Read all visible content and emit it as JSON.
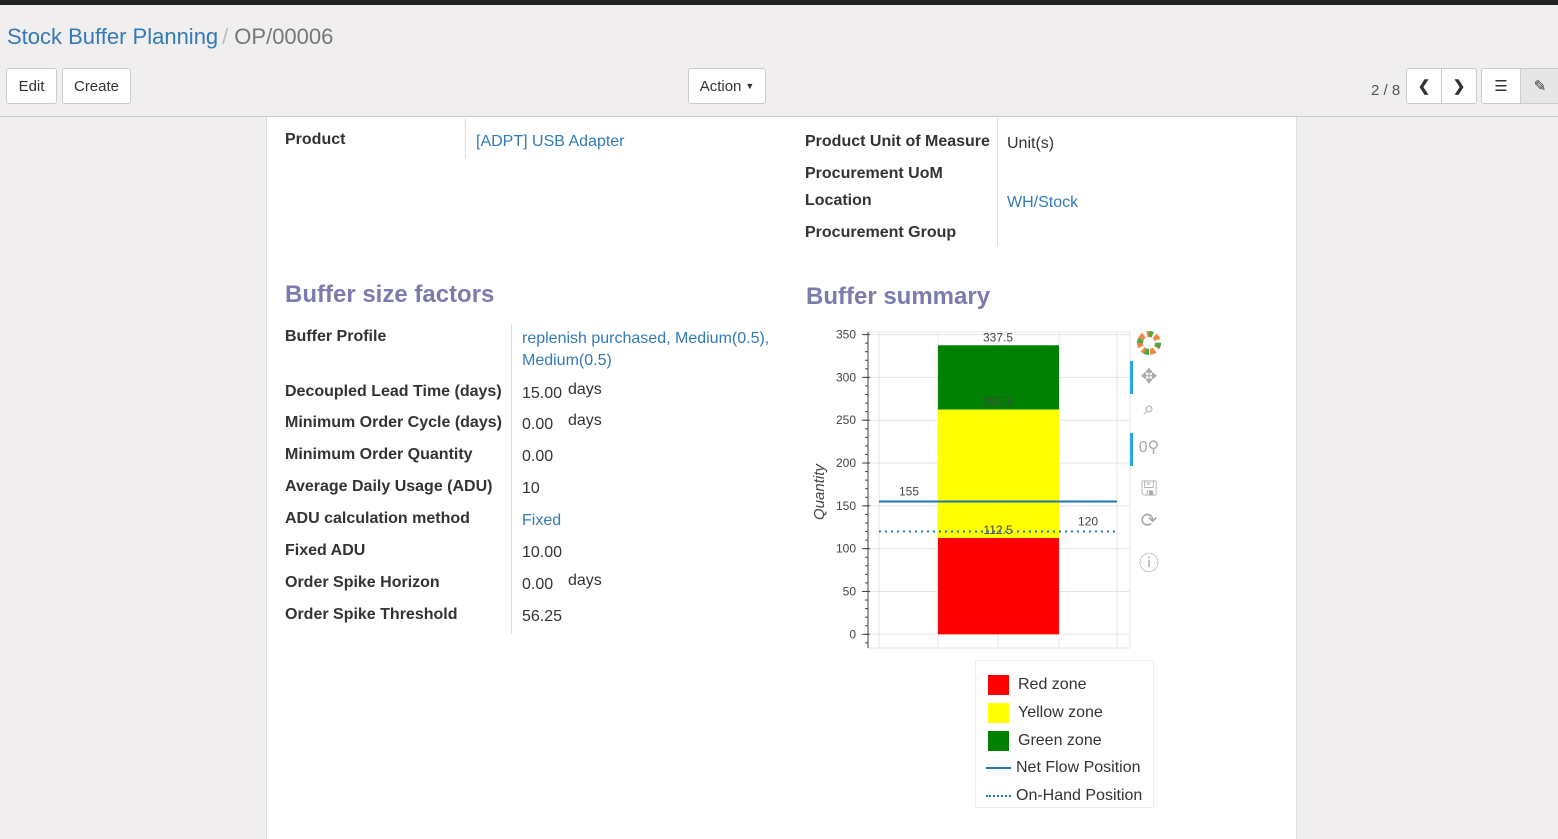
{
  "breadcrumb": {
    "parent": "Stock Buffer Planning",
    "current": "OP/00006"
  },
  "toolbar": {
    "edit": "Edit",
    "create": "Create",
    "action": "Action",
    "pager": "2 / 8"
  },
  "header_fields": {
    "product_label": "Product",
    "product_value": "[ADPT] USB Adapter",
    "uom_label": "Product Unit of Measure",
    "uom_value": "Unit(s)",
    "proc_uom_label": "Procurement UoM",
    "location_label": "Location",
    "location_value": "WH/Stock",
    "proc_group_label": "Procurement Group"
  },
  "factors": {
    "title": "Buffer size factors",
    "rows": [
      {
        "label": "Buffer Profile",
        "value": "replenish purchased, Medium(0.5), Medium(0.5)",
        "link": true
      },
      {
        "label": "Decoupled Lead Time (days)",
        "value": "15.00",
        "unit": "days"
      },
      {
        "label": "Minimum Order Cycle (days)",
        "value": "0.00",
        "unit": "days"
      },
      {
        "label": "Minimum Order Quantity",
        "value": "0.00"
      },
      {
        "label": "Average Daily Usage (ADU)",
        "value": "10"
      },
      {
        "label": "ADU calculation method",
        "value": "Fixed",
        "link": true
      },
      {
        "label": "Fixed ADU",
        "value": "10.00"
      },
      {
        "label": "Order Spike Horizon",
        "value": "0.00",
        "unit": "days"
      },
      {
        "label": "Order Spike Threshold",
        "value": "56.25"
      }
    ]
  },
  "summary": {
    "title": "Buffer summary"
  },
  "chart_data": {
    "type": "bar",
    "ylabel": "Quantity",
    "ylim": [
      -16,
      353
    ],
    "grid": true,
    "yticks": [
      0,
      50,
      100,
      150,
      200,
      250,
      300,
      350
    ],
    "stack": [
      {
        "name": "Red zone",
        "from": 0,
        "to": 112.5,
        "color": "#ff0000",
        "label": "112.5"
      },
      {
        "name": "Yellow zone",
        "from": 112.5,
        "to": 262.5,
        "color": "#ffff00",
        "label": "262.5"
      },
      {
        "name": "Green zone",
        "from": 262.5,
        "to": 337.5,
        "color": "#008000",
        "label": "337.5"
      }
    ],
    "lines": [
      {
        "name": "Net Flow Position",
        "value": 155,
        "label": "155",
        "style": "solid",
        "color": "#1f77b4"
      },
      {
        "name": "On-Hand Position",
        "value": 120,
        "label": "120",
        "style": "dotted",
        "color": "#1f77b4"
      }
    ],
    "legend_position": "bottom"
  }
}
